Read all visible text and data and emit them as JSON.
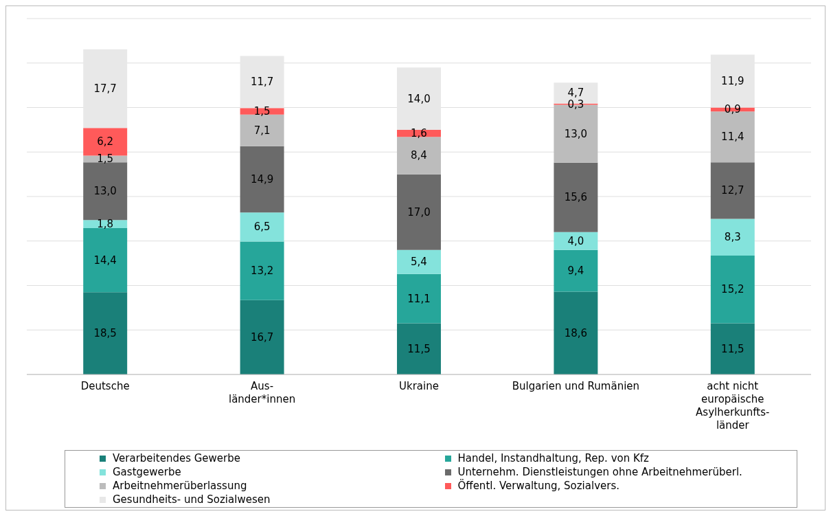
{
  "chart_data": {
    "type": "bar",
    "stacked": true,
    "categories": [
      "Deutsche",
      "Aus-\nländer*innen",
      "Ukraine",
      "Bulgarien und Rumänien",
      "acht nicht\neuropäische\nAsylherkunfts-\nländer"
    ],
    "series": [
      {
        "name": "Verarbeitendes Gewerbe",
        "color": "#1a8079",
        "values": [
          18.5,
          16.7,
          11.5,
          18.6,
          11.5
        ],
        "value_labels": [
          "18,5",
          "16,7",
          "11,5",
          "18,6",
          "11,5"
        ]
      },
      {
        "name": "Handel, Instandhaltung, Rep. von Kfz",
        "color": "#26a69a",
        "values": [
          14.4,
          13.2,
          11.1,
          9.4,
          15.2
        ],
        "value_labels": [
          "14,4",
          "13,2",
          "11,1",
          "9,4",
          "15,2"
        ]
      },
      {
        "name": "Gastgewerbe",
        "color": "#84e3dc",
        "values": [
          1.8,
          6.5,
          5.4,
          4.0,
          8.3
        ],
        "value_labels": [
          "1,8",
          "6,5",
          "5,4",
          "4,0",
          "8,3"
        ]
      },
      {
        "name": "Unternehm. Dienstleistungen ohne Arbeitnehmerüberl.",
        "color": "#6b6b6b",
        "values": [
          13.0,
          14.9,
          17.0,
          15.6,
          12.7
        ],
        "value_labels": [
          "13,0",
          "14,9",
          "17,0",
          "15,6",
          "12,7"
        ]
      },
      {
        "name": "Arbeitnehmerüberlassung",
        "color": "#bcbcbc",
        "values": [
          1.5,
          7.1,
          8.4,
          13.0,
          11.4
        ],
        "value_labels": [
          "1,5",
          "7,1",
          "8,4",
          "13,0",
          "11,4"
        ]
      },
      {
        "name": "Öffentl. Verwaltung, Sozialvers.",
        "color": "#ff5a5a",
        "values": [
          6.2,
          1.5,
          1.6,
          0.3,
          0.9
        ],
        "value_labels": [
          "6,2",
          "1,5",
          "1,6",
          "0,3",
          "0,9"
        ]
      },
      {
        "name": "Gesundheits- und Sozialwesen",
        "color": "#e8e8e8",
        "values": [
          17.7,
          11.7,
          14.0,
          4.7,
          11.9
        ],
        "value_labels": [
          "17,7",
          "11,7",
          "14,0",
          "4,7",
          "11,9"
        ]
      }
    ],
    "yticks": [
      {
        "value": 0,
        "label": null
      },
      {
        "value": 10,
        "label": null
      },
      {
        "value": 20,
        "label": null
      },
      {
        "value": 30,
        "label": null
      },
      {
        "value": 40,
        "label": null
      },
      {
        "value": 50,
        "label": null
      },
      {
        "value": 60,
        "label": null
      },
      {
        "value": 70,
        "label": null
      }
    ],
    "tick_labels": "x",
    "grid": "y",
    "legend": "bottom"
  }
}
